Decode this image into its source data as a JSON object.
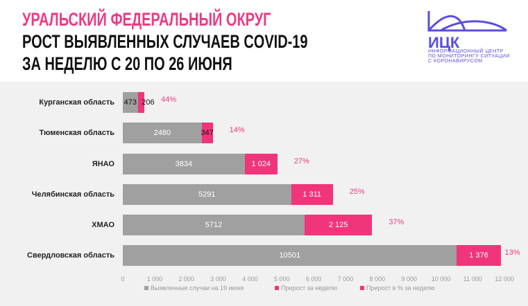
{
  "header": {
    "line1": "УРАЛЬСКИЙ ФЕДЕРАЛЬНЫЙ ОКРУГ",
    "line2": "РОСТ ВЫЯВЛЕННЫХ СЛУЧАЕВ COVID-19",
    "line3": "ЗА НЕДЕЛЮ С 20 ПО 26 ИЮНЯ"
  },
  "logo": {
    "name": "ИЦК",
    "sub1": "ИНФОРМАЦИОННЫЙ ЦЕНТР",
    "sub2": "ПО МОНИТОРИНГУ СИТУАЦИИ",
    "sub3": "С КОРОНАВИРУСОМ",
    "color": "#5a4de0"
  },
  "chart_data": {
    "type": "bar",
    "orientation": "horizontal-stacked",
    "categories": [
      "Курганская область",
      "Тюменская область",
      "ЯНАО",
      "Челябинская область",
      "ХМАО",
      "Свердловская область"
    ],
    "series": [
      {
        "name": "Выявленные случаи на 19 июня",
        "color": "#a0a0a0",
        "values": [
          473,
          2480,
          3834,
          5291,
          5712,
          10501
        ],
        "labels": [
          "473",
          "2480",
          "3834",
          "5291",
          "5712",
          "10501"
        ]
      },
      {
        "name": "Прирост за неделю",
        "color": "#f0357a",
        "values": [
          206,
          347,
          1024,
          1311,
          2125,
          1376
        ],
        "labels": [
          "206",
          "347",
          "1 024",
          "1 311",
          "2 125",
          "1 376"
        ]
      },
      {
        "name": "Прирост в % за неделю",
        "color": "#f0357a",
        "values": [
          44,
          14,
          27,
          25,
          37,
          13
        ],
        "labels": [
          "44%",
          "14%",
          "27%",
          "25%",
          "37%",
          "13%"
        ]
      }
    ],
    "xlim": [
      0,
      12000
    ],
    "xticks": [
      "0",
      "1 000",
      "2 000",
      "3 000",
      "4 000",
      "5 000",
      "6 000",
      "7 000",
      "8 000",
      "9 000",
      "10 000",
      "11 000",
      "12 000"
    ],
    "grid": false,
    "legend": "bottom"
  }
}
